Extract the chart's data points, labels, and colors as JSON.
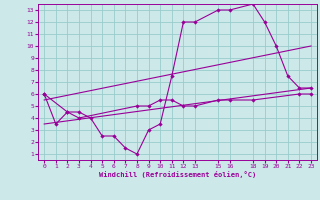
{
  "bg_color": "#cce8e8",
  "line_color": "#990099",
  "grid_color": "#99cccc",
  "xlabel": "Windchill (Refroidissement éolien,°C)",
  "xlim": [
    -0.5,
    23.5
  ],
  "ylim": [
    0.5,
    13.5
  ],
  "xticks": [
    0,
    1,
    2,
    3,
    4,
    5,
    6,
    7,
    8,
    9,
    10,
    11,
    12,
    13,
    15,
    16,
    18,
    19,
    20,
    21,
    22,
    23
  ],
  "yticks": [
    1,
    2,
    3,
    4,
    5,
    6,
    7,
    8,
    9,
    10,
    11,
    12,
    13
  ],
  "lines": [
    {
      "x": [
        0,
        1,
        2,
        3,
        4,
        5,
        6,
        7,
        8,
        9,
        10,
        11,
        12,
        13,
        15,
        16,
        18,
        19,
        20,
        21,
        22,
        23
      ],
      "y": [
        6,
        3.5,
        4.5,
        4.5,
        4,
        2.5,
        2.5,
        1.5,
        1,
        3,
        3.5,
        7.5,
        12,
        12,
        13,
        13,
        13.5,
        12,
        10,
        7.5,
        6.5,
        6.5
      ],
      "has_markers": true
    },
    {
      "x": [
        0,
        2,
        3,
        8,
        9,
        10,
        11,
        12,
        13,
        15,
        16,
        18,
        22,
        23
      ],
      "y": [
        6,
        4.5,
        4,
        5,
        5,
        5.5,
        5.5,
        5,
        5,
        5.5,
        5.5,
        5.5,
        6,
        6
      ],
      "has_markers": true
    },
    {
      "x": [
        0,
        23
      ],
      "y": [
        3.5,
        6.5
      ],
      "has_markers": false
    },
    {
      "x": [
        0,
        23
      ],
      "y": [
        5.5,
        10
      ],
      "has_markers": false
    }
  ]
}
